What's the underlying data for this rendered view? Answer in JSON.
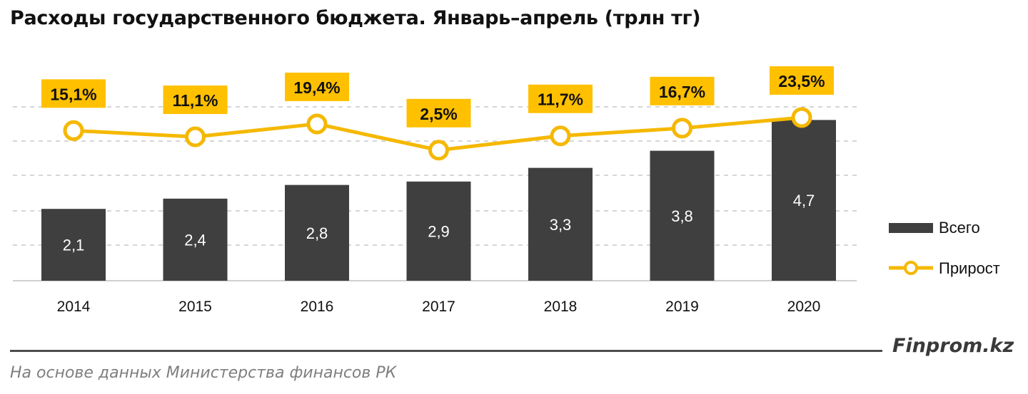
{
  "title": "Расходы государственного бюджета. Январь–апрель (трлн тг)",
  "brand": "Finprom.kz",
  "source": "На основе данных Министерства финансов РК",
  "colors": {
    "bar": "#3f3f3f",
    "line": "#f5b800",
    "label_bg": "#ffc000",
    "grid": "#c9c9c9"
  },
  "chart_data": {
    "type": "bar",
    "categories": [
      "2014",
      "2015",
      "2016",
      "2017",
      "2018",
      "2019",
      "2020"
    ],
    "series": [
      {
        "name": "Всего",
        "type": "bar",
        "values": [
          2.1,
          2.4,
          2.8,
          2.9,
          3.3,
          3.8,
          4.7
        ],
        "labels": [
          "2,1",
          "2,4",
          "2,8",
          "2,9",
          "3,3",
          "3,8",
          "4,7"
        ]
      },
      {
        "name": "Прирост",
        "type": "line",
        "values": [
          15.1,
          11.1,
          19.4,
          2.5,
          11.7,
          16.7,
          23.5
        ],
        "labels": [
          "15,1%",
          "11,1%",
          "19,4%",
          "2,5%",
          "11,7%",
          "16,7%",
          "23,5%"
        ]
      }
    ],
    "legend_position": "right",
    "grid": true
  }
}
